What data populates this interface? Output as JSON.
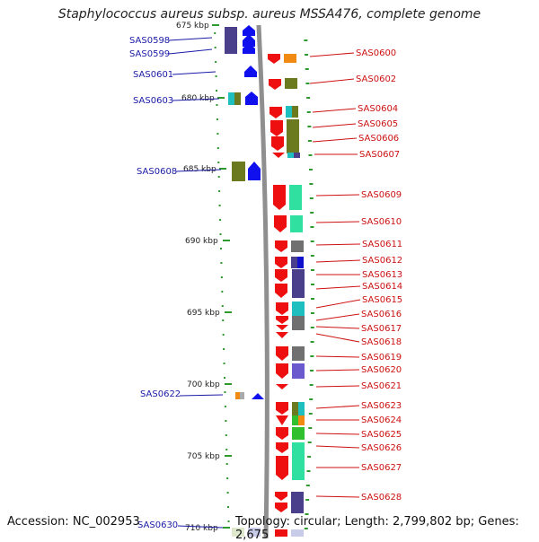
{
  "title": "Staphylococcus aureus subsp. aureus MSSA476, complete genome",
  "footer": {
    "accession": "Accession: NC_002953",
    "topology": "Topology: circular; Length: 2,799,802 bp; Genes: 2,675"
  },
  "kbp_ticks": [
    "675 kbp",
    "680 kbp",
    "685 kbp",
    "690 kbp",
    "695 kbp",
    "700 kbp",
    "705 kbp",
    "710 kbp"
  ],
  "left_genes": [
    "SAS0598",
    "SAS0599",
    "SAS0601",
    "SAS0603",
    "SAS0608",
    "SAS0622",
    "SAS0630"
  ],
  "right_genes": [
    "SAS0600",
    "SAS0602",
    "SAS0604",
    "SAS0605",
    "SAS0606",
    "SAS0607",
    "SAS0609",
    "SAS0610",
    "SAS0611",
    "SAS0612",
    "SAS0613",
    "SAS0614",
    "SAS0615",
    "SAS0616",
    "SAS0617",
    "SAS0618",
    "SAS0619",
    "SAS0620",
    "SAS0621",
    "SAS0623",
    "SAS0624",
    "SAS0625",
    "SAS0626",
    "SAS0627",
    "SAS0628"
  ],
  "colors": {
    "backbone": "#8f8f8f",
    "forward_gene": "#1010ee",
    "reverse_gene": "#ee1010",
    "left_label": "#1a1aa6",
    "right_label": "#cc1111",
    "tick": "#2e9a2e",
    "cog_purple": "#4a3f8a",
    "cog_olive": "#6b7a1e",
    "cog_teal": "#1fbfbf",
    "cog_green": "#2fe0a0",
    "cog_grey": "#707070",
    "cog_orange": "#f08a10"
  }
}
